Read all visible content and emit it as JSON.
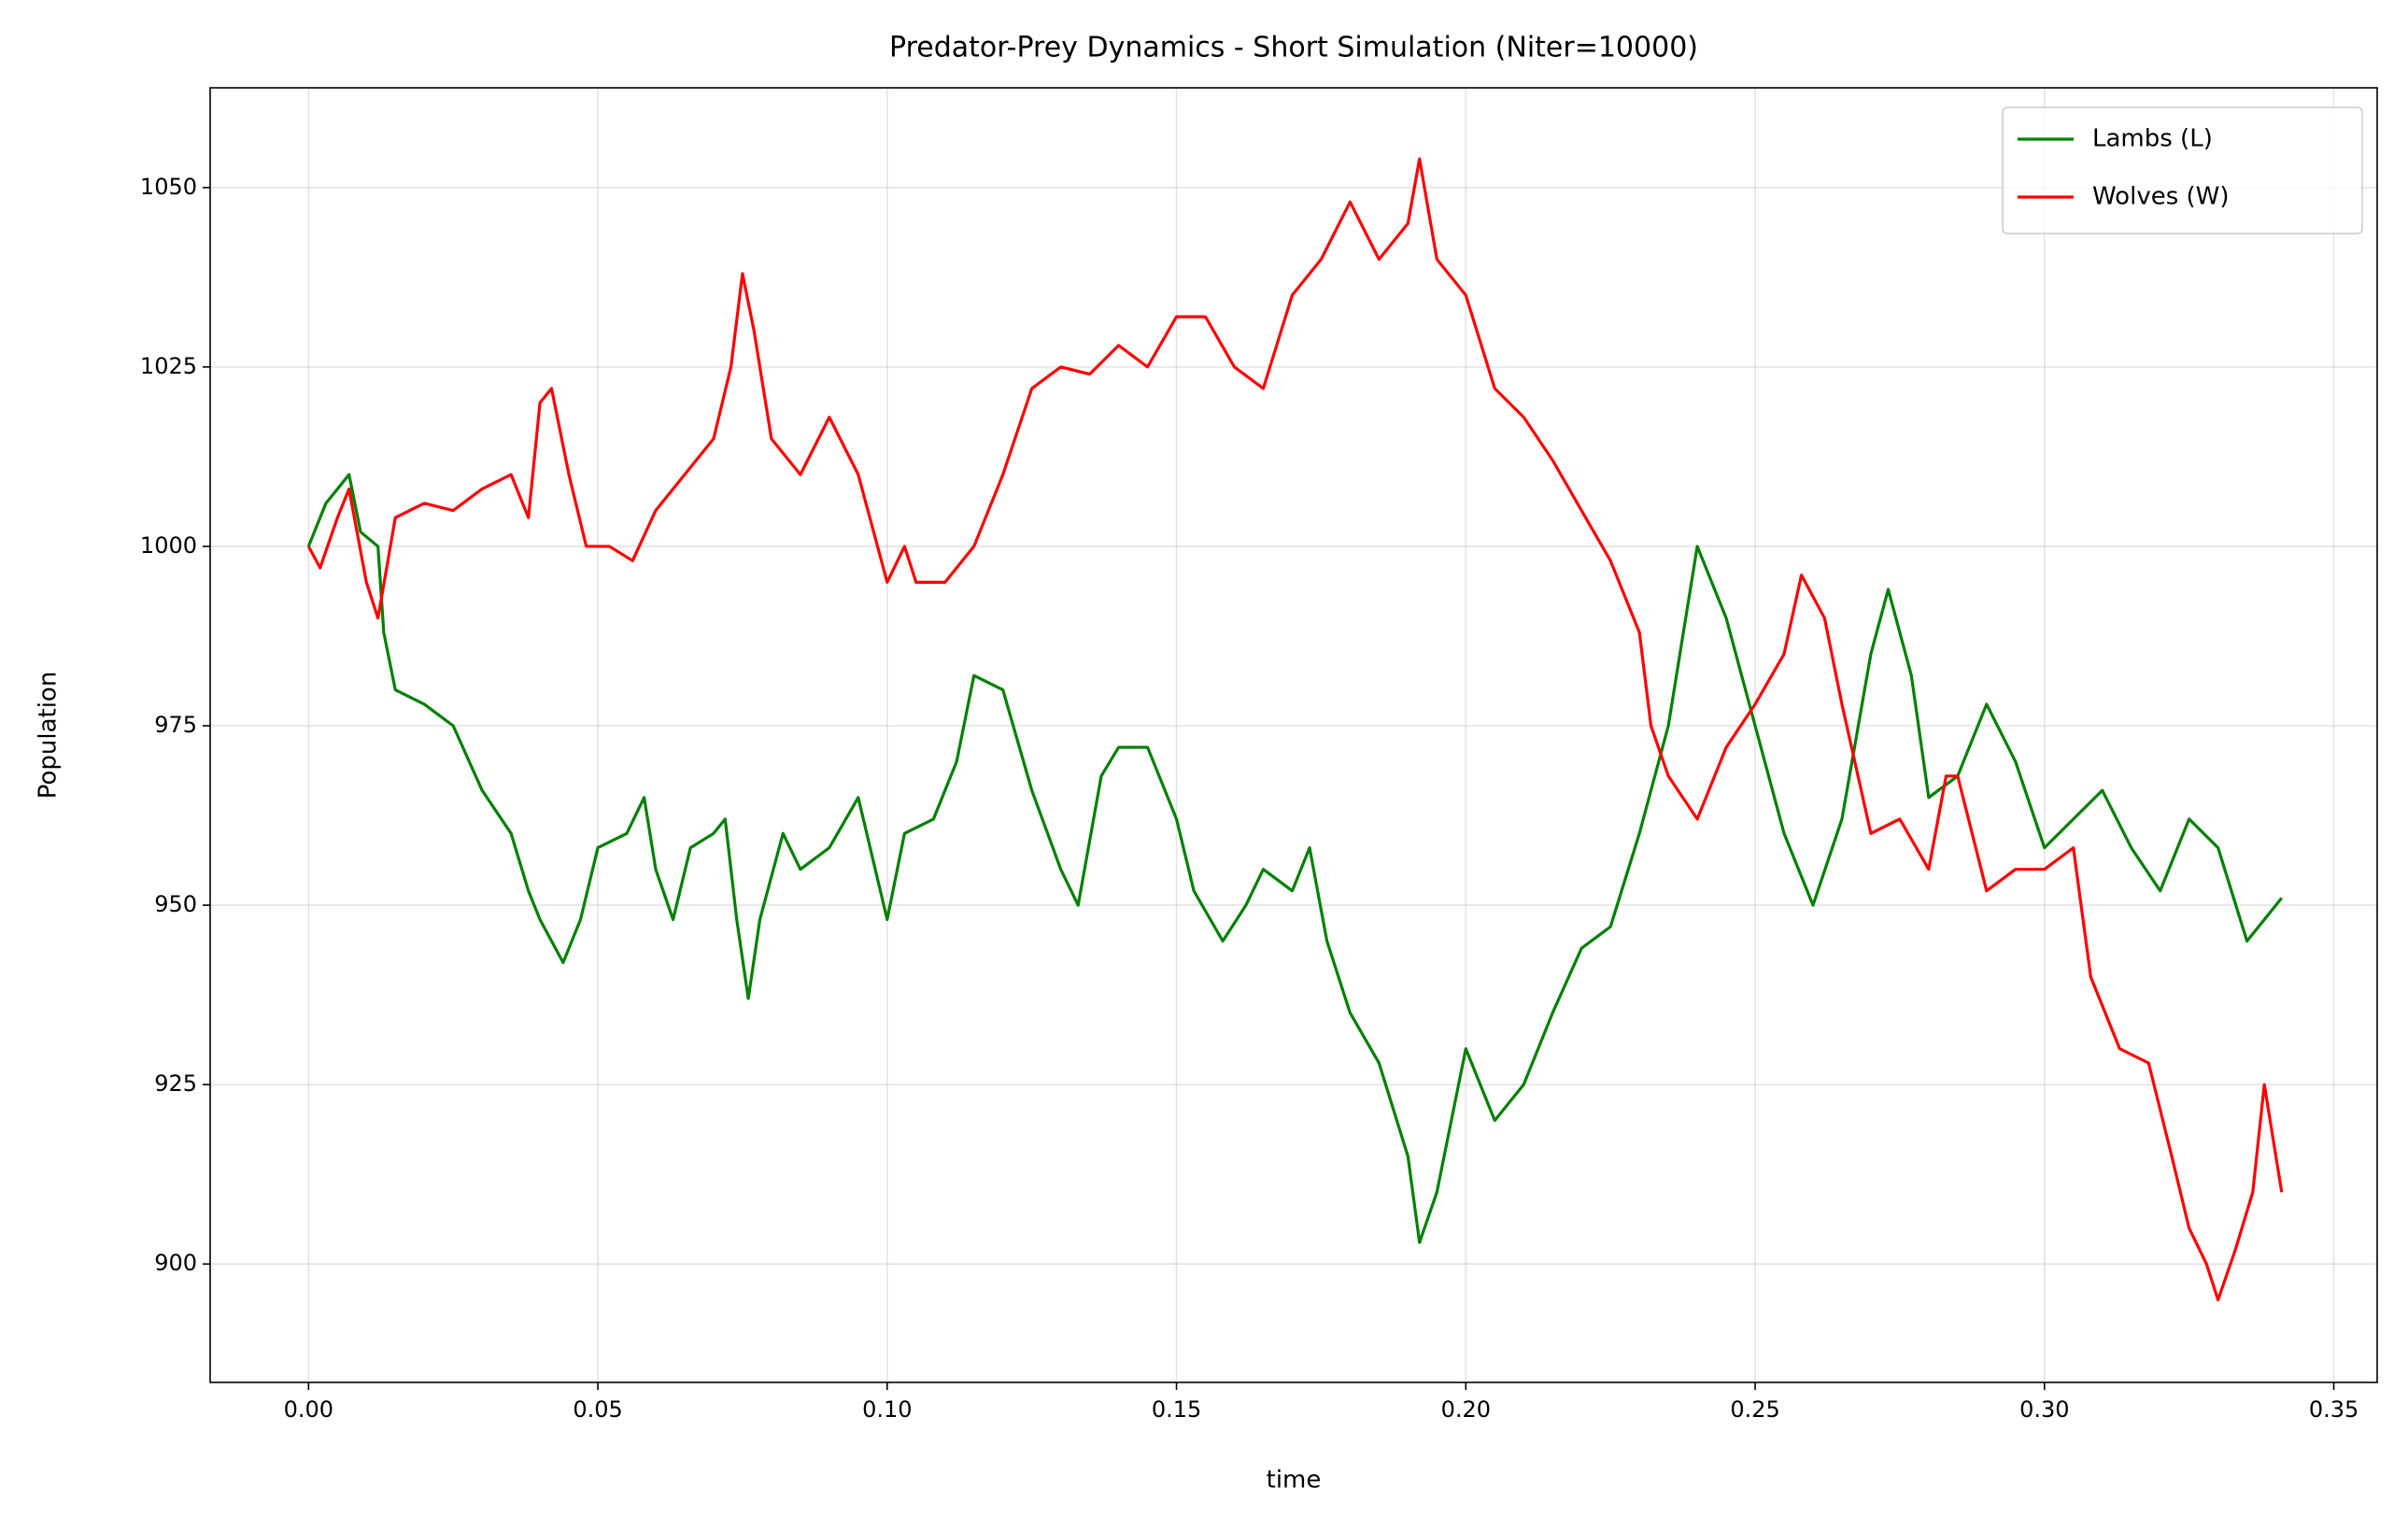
{
  "chart_data": {
    "type": "line",
    "title": "Predator-Prey Dynamics - Short Simulation (Niter=10000)",
    "xlabel": "time",
    "ylabel": "Population",
    "xlim": [
      -0.017,
      0.3575
    ],
    "ylim": [
      883.5,
      1063.9
    ],
    "xticks": [
      {
        "value": 0,
        "label": "0.00"
      },
      {
        "value": 0.05,
        "label": "0.05"
      },
      {
        "value": 0.1,
        "label": "0.10"
      },
      {
        "value": 0.15,
        "label": "0.15"
      },
      {
        "value": 0.2,
        "label": "0.20"
      },
      {
        "value": 0.25,
        "label": "0.25"
      },
      {
        "value": 0.3,
        "label": "0.30"
      },
      {
        "value": 0.35,
        "label": "0.35"
      }
    ],
    "yticks": [
      900,
      925,
      950,
      975,
      1000,
      1025,
      1050
    ],
    "grid": true,
    "legend": "upper right",
    "series": [
      {
        "name": "Lambs (L)",
        "color": "#008000",
        "x": [
          0,
          0.003,
          0.005,
          0.007,
          0.009,
          0.012,
          0.013,
          0.015,
          0.02,
          0.025,
          0.03,
          0.035,
          0.038,
          0.04,
          0.044,
          0.047,
          0.05,
          0.055,
          0.058,
          0.06,
          0.063,
          0.066,
          0.07,
          0.072,
          0.074,
          0.076,
          0.078,
          0.082,
          0.085,
          0.09,
          0.095,
          0.1,
          0.103,
          0.108,
          0.112,
          0.115,
          0.12,
          0.125,
          0.13,
          0.133,
          0.137,
          0.14,
          0.145,
          0.15,
          0.153,
          0.158,
          0.162,
          0.165,
          0.17,
          0.173,
          0.176,
          0.18,
          0.185,
          0.19,
          0.192,
          0.195,
          0.2,
          0.205,
          0.21,
          0.215,
          0.22,
          0.225,
          0.23,
          0.235,
          0.24,
          0.245,
          0.25,
          0.255,
          0.26,
          0.265,
          0.27,
          0.273,
          0.277,
          0.28,
          0.285,
          0.29,
          0.295,
          0.3,
          0.305,
          0.31,
          0.315,
          0.32,
          0.325,
          0.33,
          0.335,
          0.338,
          0.341
        ],
        "values": [
          1000,
          1006,
          1008,
          1010,
          1002,
          1000,
          988,
          980,
          978,
          975,
          966,
          960,
          952,
          948,
          942,
          948,
          958,
          960,
          965,
          955,
          948,
          958,
          960,
          962,
          948,
          937,
          948,
          960,
          955,
          958,
          965,
          948,
          960,
          962,
          970,
          982,
          980,
          966,
          955,
          950,
          968,
          972,
          972,
          962,
          952,
          945,
          950,
          955,
          952,
          958,
          945,
          935,
          928,
          915,
          903,
          910,
          930,
          920,
          925,
          935,
          944,
          947,
          960,
          975,
          1000,
          990,
          975,
          960,
          950,
          962,
          985,
          994,
          982,
          965,
          968,
          978,
          970,
          958,
          962,
          966,
          958,
          952,
          962,
          958,
          945,
          948,
          951
        ]
      },
      {
        "name": "Wolves (W)",
        "color": "#ff0000",
        "x": [
          0,
          0.002,
          0.005,
          0.007,
          0.01,
          0.012,
          0.015,
          0.02,
          0.025,
          0.03,
          0.035,
          0.038,
          0.04,
          0.042,
          0.045,
          0.048,
          0.052,
          0.056,
          0.06,
          0.065,
          0.07,
          0.073,
          0.075,
          0.077,
          0.08,
          0.085,
          0.09,
          0.095,
          0.1,
          0.103,
          0.105,
          0.11,
          0.115,
          0.12,
          0.125,
          0.13,
          0.135,
          0.14,
          0.145,
          0.15,
          0.155,
          0.16,
          0.165,
          0.17,
          0.175,
          0.18,
          0.185,
          0.19,
          0.192,
          0.195,
          0.2,
          0.205,
          0.21,
          0.215,
          0.22,
          0.225,
          0.23,
          0.232,
          0.235,
          0.24,
          0.245,
          0.25,
          0.255,
          0.258,
          0.262,
          0.265,
          0.27,
          0.275,
          0.28,
          0.283,
          0.285,
          0.29,
          0.295,
          0.3,
          0.305,
          0.308,
          0.313,
          0.318,
          0.322,
          0.325,
          0.328,
          0.33,
          0.333,
          0.336,
          0.338,
          0.34,
          0.341
        ],
        "values": [
          1000,
          997,
          1004,
          1008,
          995,
          990,
          1004,
          1006,
          1005,
          1008,
          1010,
          1004,
          1020,
          1022,
          1010,
          1000,
          1000,
          998,
          1005,
          1010,
          1015,
          1025,
          1038,
          1030,
          1015,
          1010,
          1018,
          1010,
          995,
          1000,
          995,
          995,
          1000,
          1010,
          1022,
          1025,
          1024,
          1028,
          1025,
          1032,
          1032,
          1025,
          1022,
          1035,
          1040,
          1048,
          1040,
          1045,
          1054,
          1040,
          1035,
          1022,
          1018,
          1012,
          1005,
          998,
          988,
          975,
          968,
          962,
          972,
          978,
          985,
          996,
          990,
          978,
          960,
          962,
          955,
          968,
          968,
          952,
          955,
          955,
          958,
          940,
          930,
          928,
          915,
          905,
          900,
          895,
          902,
          910,
          925,
          915,
          910
        ]
      }
    ]
  }
}
